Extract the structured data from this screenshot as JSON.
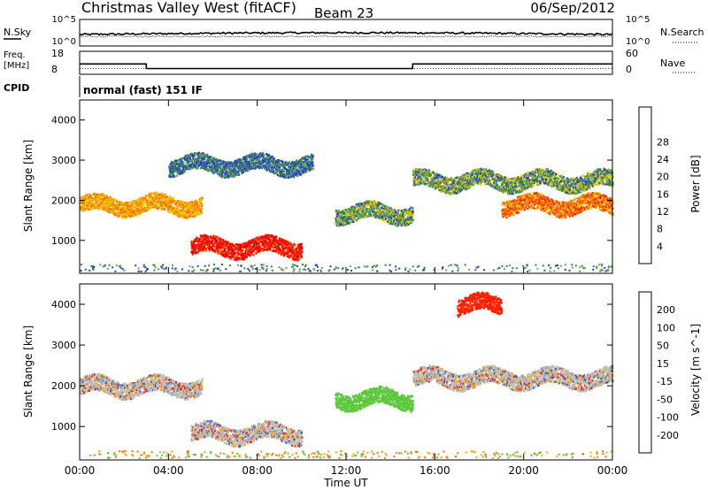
{
  "header": {
    "station": "Christmas Valley West (fitACF)",
    "beam": "Beam 23",
    "date": "06/Sep/2012"
  },
  "strip_labels": {
    "nsky": "N.Sky",
    "nsearch": "N.Search",
    "freq_line1": "Freq.",
    "freq_line2": "[MHz]",
    "nave": "Nave",
    "cpid": "CPID",
    "cpid_value": "normal (fast) 151 IF",
    "noise_ticks_left": [
      "10^5",
      "10^0"
    ],
    "noise_ticks_right": [
      "10^5",
      "10^0"
    ],
    "freq_ticks": [
      "18",
      "8"
    ],
    "nave_ticks": [
      "60",
      "0"
    ]
  },
  "axes": {
    "ylabel": "Slant Range [km]",
    "yticks": [
      "1000",
      "2000",
      "3000",
      "4000"
    ],
    "xticks": [
      "00:00",
      "04:00",
      "08:00",
      "12:00",
      "16:00",
      "20:00",
      "00:00"
    ],
    "xlabel": "Time UT"
  },
  "power_scale": {
    "label": "Power [dB]",
    "ticks": [
      "4",
      "8",
      "12",
      "16",
      "20",
      "24",
      "28"
    ],
    "colors": [
      "#0a14c8",
      "#2a3ad0",
      "#2e8a3a",
      "#5fa35f",
      "#e8c800",
      "#ffa000",
      "#ff6000",
      "#ff2000",
      "#e80000"
    ]
  },
  "velocity_scale": {
    "label": "Velocity [m s^-1]",
    "ticks": [
      "200",
      "100",
      "50",
      "15",
      "-15",
      "-50",
      "-100",
      "-200"
    ],
    "colors": [
      "#1a1ab4",
      "#2e5cc8",
      "#2e8a2e",
      "#5cc83c",
      "#bebeb4",
      "#ffa000",
      "#ff6a00",
      "#ff2000",
      "#e80000"
    ]
  },
  "chart_data": [
    {
      "type": "line",
      "title": "N.Sky / N.Search",
      "x_range_hours": [
        0,
        24
      ],
      "ylim": [
        "10^0",
        "10^5"
      ]
    },
    {
      "type": "line",
      "title": "Freq. / Nave",
      "x": [
        0,
        3,
        3,
        15,
        15,
        24
      ],
      "freq_mhz": [
        12.5,
        12.5,
        10.5,
        10.5,
        12.5,
        12.5
      ],
      "nave": [
        15,
        15,
        15,
        15,
        15,
        15
      ],
      "ylim_freq": [
        8,
        18
      ],
      "ylim_nave": [
        0,
        60
      ]
    },
    {
      "type": "heatmap",
      "quantity": "Power [dB]",
      "x_range_hours": [
        0,
        24
      ],
      "ylim_km": [
        180,
        4500
      ],
      "zlim": [
        0,
        30
      ],
      "features": [
        {
          "t_start": 0,
          "t_end": 5.5,
          "range_km": 1900,
          "power_db": 18
        },
        {
          "t_start": 5,
          "t_end": 10,
          "range_km": 850,
          "power_db": 26
        },
        {
          "t_start": 4,
          "t_end": 10.5,
          "range_km": 2900,
          "power_db": 8
        },
        {
          "t_start": 11.5,
          "t_end": 15,
          "range_km": 1700,
          "power_db": 9
        },
        {
          "t_start": 15,
          "t_end": 24,
          "range_km": 2500,
          "power_db": 10
        },
        {
          "t_start": 19,
          "t_end": 24,
          "range_km": 1900,
          "power_db": 20
        }
      ]
    },
    {
      "type": "heatmap",
      "quantity": "Velocity [m s^-1]",
      "x_range_hours": [
        0,
        24
      ],
      "ylim_km": [
        180,
        4500
      ],
      "zlim": [
        -200,
        200
      ],
      "features": [
        {
          "t_start": 0,
          "t_end": 5.5,
          "range_km": 2000,
          "velocity": 0
        },
        {
          "t_start": 5,
          "t_end": 10,
          "range_km": 850,
          "velocity": 0
        },
        {
          "t_start": 11.5,
          "t_end": 15,
          "range_km": 1700,
          "velocity": 40
        },
        {
          "t_start": 15,
          "t_end": 24,
          "range_km": 2200,
          "velocity": 0
        },
        {
          "t_start": 17,
          "t_end": 19,
          "range_km": 4000,
          "velocity": -150
        }
      ]
    }
  ]
}
